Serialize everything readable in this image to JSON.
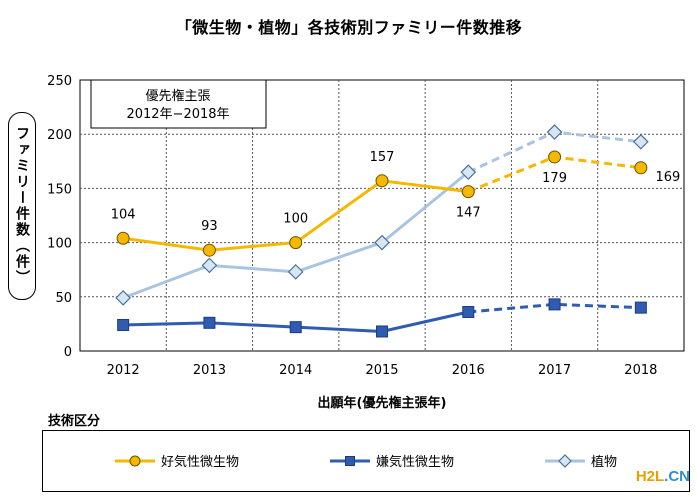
{
  "chart_data": {
    "type": "line",
    "title": "「微生物・植物」各技術別ファミリー件数推移",
    "xlabel": "出願年(優先権主張年)",
    "ylabel": "ファミリー件数（件）",
    "categories": [
      "2012",
      "2013",
      "2014",
      "2015",
      "2016",
      "2017",
      "2018"
    ],
    "ylim": [
      0,
      250
    ],
    "yticks": [
      0,
      50,
      100,
      150,
      200,
      250
    ],
    "grid": "dotted",
    "annotation": [
      "優先権主張",
      "2012年−2018年"
    ],
    "legend_title": "技術区分",
    "legend_position": "bottom",
    "series": [
      {
        "name": "好気性微生物",
        "values": [
          104,
          93,
          100,
          157,
          147,
          179,
          169
        ],
        "color": "#f5b800",
        "marker": "circle",
        "labeled": true,
        "dashed_from": 4
      },
      {
        "name": "嫌気性微生物",
        "values": [
          24,
          26,
          22,
          18,
          36,
          43,
          40
        ],
        "color": "#2f5cb0",
        "marker": "square",
        "labeled": false,
        "dashed_from": 4
      },
      {
        "name": "植物",
        "values": [
          49,
          79,
          73,
          100,
          165,
          202,
          193
        ],
        "color": "#a8c4e2",
        "marker": "diamond",
        "labeled": false,
        "dashed_from": 4
      }
    ]
  },
  "watermark": {
    "part_a": "H2L",
    "part_b": ".CN"
  }
}
